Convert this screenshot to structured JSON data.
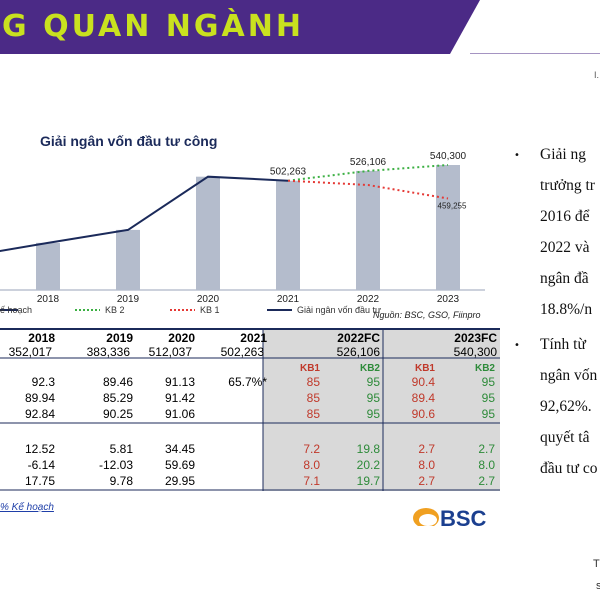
{
  "banner": {
    "title": "G QUAN NGÀNH",
    "color": "#4b2a86",
    "accent": "#c9e11f"
  },
  "chart_data": {
    "type": "bar",
    "title": "Giải ngân vốn đầu tư công",
    "categories": [
      "2018",
      "2019",
      "2020",
      "2021",
      "2022",
      "2023"
    ],
    "bar_values": [
      352017,
      383336,
      512037,
      502263,
      526106,
      540300
    ],
    "bar_labels": [
      "",
      "",
      "",
      "502,263",
      "526,106",
      "540,300"
    ],
    "series": [
      {
        "name": "Giải ngân vốn đầu tư",
        "style": "solid",
        "color": "#1b2a5a",
        "x": [
          "2017",
          "2018",
          "2019",
          "2020",
          "2021"
        ],
        "values": [
          324000,
          352017,
          383336,
          512037,
          502263
        ]
      },
      {
        "name": "KB 2",
        "style": "dotted",
        "color": "#3cb043",
        "x": [
          "2021",
          "2022",
          "2023"
        ],
        "values": [
          502263,
          526106,
          540300
        ]
      },
      {
        "name": "KB 1",
        "style": "dotted",
        "color": "#e53935",
        "x": [
          "2021",
          "2022",
          "2023"
        ],
        "values": [
          502263,
          492000,
          459255
        ]
      }
    ],
    "annotations": [
      {
        "x": "2023",
        "text": "459,255"
      }
    ],
    "legend": {
      "solid_label": "ế hoạch",
      "kb2": "KB 2",
      "kb1": "KB 1",
      "line": "Giải ngân vốn đầu tư"
    },
    "bar_color": "#b4bccc"
  },
  "table": {
    "headers": [
      "2018",
      "2019",
      "2020",
      "2021",
      "2022FC",
      "2023FC"
    ],
    "totals": [
      "352,017",
      "383,336",
      "512,037",
      "502,263",
      "526,106",
      "540,300"
    ],
    "kb_headers": [
      "KB1",
      "KB2",
      "KB1",
      "KB2"
    ],
    "group1": [
      {
        "hist": [
          "92.3",
          "89.46",
          "91.13",
          "65.7%*"
        ],
        "fc": [
          "85",
          "95",
          "90.4",
          "95"
        ]
      },
      {
        "hist": [
          "89.94",
          "85.29",
          "91.42",
          ""
        ],
        "fc": [
          "85",
          "95",
          "89.4",
          "95"
        ]
      },
      {
        "hist": [
          "92.84",
          "90.25",
          "91.06",
          ""
        ],
        "fc": [
          "85",
          "95",
          "90.6",
          "95"
        ]
      }
    ],
    "group2": [
      {
        "hist": [
          "12.52",
          "5.81",
          "34.45",
          ""
        ],
        "fc": [
          "7.2",
          "19.8",
          "2.7",
          "2.7"
        ]
      },
      {
        "hist": [
          "-6.14",
          "-12.03",
          "59.69",
          ""
        ],
        "fc": [
          "8.0",
          "20.2",
          "8.0",
          "8.0"
        ]
      },
      {
        "hist": [
          "17.75",
          "9.78",
          "29.95",
          ""
        ],
        "fc": [
          "7.1",
          "19.7",
          "2.7",
          "2.7"
        ]
      }
    ],
    "source": "Nguồn: BSC, GSO, Fiinpro",
    "footnote": "% Kế hoạch"
  },
  "logo": {
    "text": "BSC"
  },
  "right_text": {
    "lines": [
      "Giải ng",
      "trưởng tr",
      "2016 để",
      "2022 và",
      "ngân đầ",
      "18.8%/n",
      "Tính từ",
      "ngân vốn",
      "92,62%.",
      "quyết tâ",
      "đầu tư co"
    ]
  },
  "page": {
    "num1": "T",
    "num2": "s",
    "edge": "I."
  }
}
